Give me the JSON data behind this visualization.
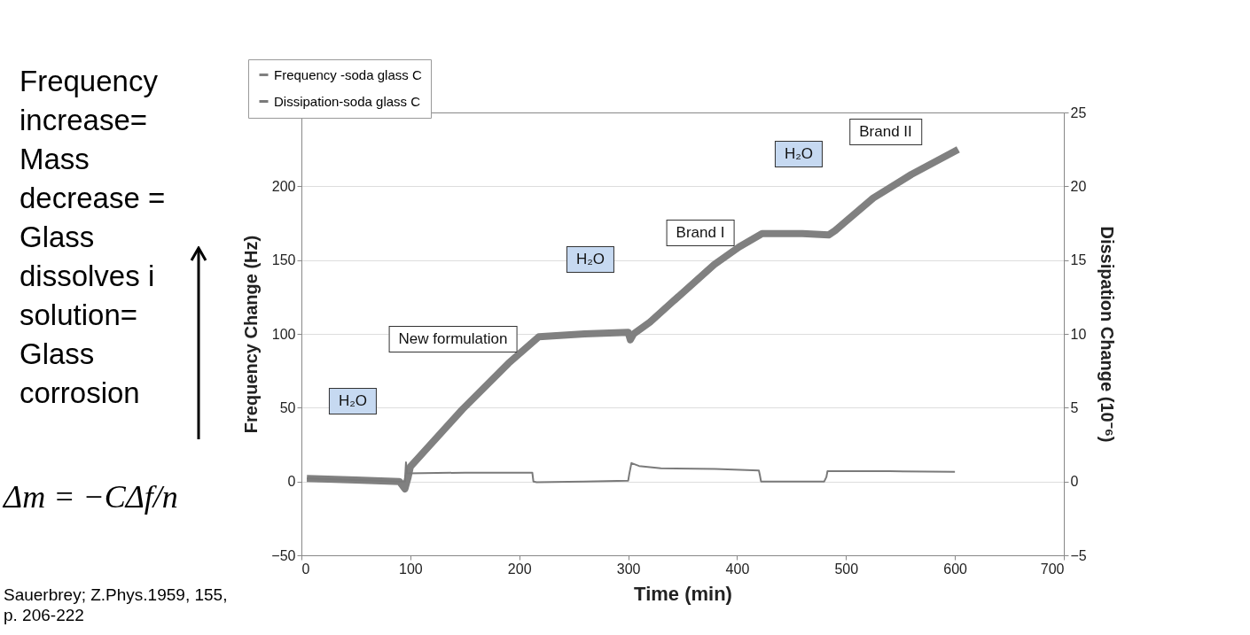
{
  "chart_data": {
    "type": "line",
    "xlabel": "Time (min)",
    "ylabel": "Frequency Change (Hz)",
    "y2label": "Dissipation Change (10⁻⁶)",
    "xlim": [
      0,
      700
    ],
    "xticks": [
      0,
      100,
      200,
      300,
      400,
      500,
      600,
      700
    ],
    "ylim": [
      -50,
      250
    ],
    "yticks": [
      -50,
      0,
      50,
      100,
      150,
      200
    ],
    "y2lim": [
      -5,
      25
    ],
    "y2ticks": [
      -5,
      0,
      5,
      10,
      15,
      20,
      25
    ],
    "grid": "y",
    "legend": "top left",
    "marker": "none",
    "line_style": "solid",
    "series": [
      {
        "name": "Frequency -soda glass C",
        "color": "#808080",
        "x": [
          5,
          50,
          90,
          93,
          95,
          98,
          100,
          148,
          190,
          218,
          260,
          300,
          302,
          305,
          320,
          379,
          402,
          423,
          460,
          484,
          490,
          525,
          560,
          603
        ],
        "values": [
          2,
          1,
          0,
          -3,
          -5,
          3,
          10,
          49,
          80,
          98,
          100,
          101,
          96,
          100,
          108,
          147,
          159,
          168,
          168,
          167,
          170,
          192,
          208,
          225
        ]
      },
      {
        "name": "Dissipation-soda glass C",
        "color": "#7a7a7a",
        "axis": "y2",
        "x": [
          5,
          50,
          90,
          95,
          96,
          97,
          150,
          212,
          213,
          216,
          260,
          300,
          301,
          303,
          310,
          330,
          380,
          420,
          421,
          422,
          480,
          482,
          483,
          540,
          600
        ],
        "values": [
          0.2,
          0.1,
          0,
          0,
          1.3,
          0.55,
          0.6,
          0.6,
          0,
          -0.05,
          0,
          0.05,
          0.5,
          1.25,
          1.05,
          0.9,
          0.85,
          0.75,
          0.4,
          0,
          0,
          0.3,
          0.7,
          0.7,
          0.65
        ]
      }
    ],
    "annotations": [
      "H₂O",
      "New formulation",
      "H₂O",
      "Brand I",
      "H₂O",
      "Brand II",
      "Frequency increase= Mass decrease = Glass dissolves i solution= Glass corrosion",
      "Δm = −CΔf/n",
      "Sauerbrey; Z.Phys.1959, 155, p. 206-222"
    ]
  }
}
